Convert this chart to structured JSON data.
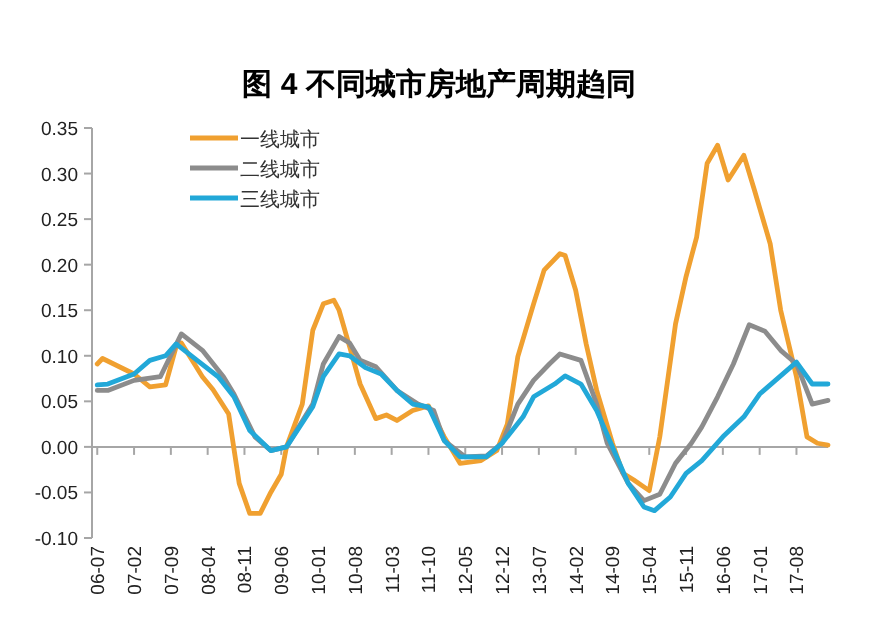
{
  "chart_data": {
    "type": "line",
    "title": "图 4  不同城市房地产周期趋同",
    "xlim": [
      "2006-06",
      "2018-02"
    ],
    "ylim": [
      -0.1,
      0.35
    ],
    "yticks": [
      {
        "value": -0.1,
        "label": "-0.10"
      },
      {
        "value": -0.05,
        "label": "-0.05"
      },
      {
        "value": 0,
        "label": "0.00"
      },
      {
        "value": 0.05,
        "label": "0.05"
      },
      {
        "value": 0.1,
        "label": "0.10"
      },
      {
        "value": 0.15,
        "label": "0.15"
      },
      {
        "value": 0.2,
        "label": "0.20"
      },
      {
        "value": 0.25,
        "label": "0.25"
      },
      {
        "value": 0.3,
        "label": "0.30"
      },
      {
        "value": 0.35,
        "label": "0.35"
      }
    ],
    "xticks": [
      {
        "value": "2006-07",
        "label": "06-07"
      },
      {
        "value": "2007-02",
        "label": "07-02"
      },
      {
        "value": "2007-09",
        "label": "07-09"
      },
      {
        "value": "2008-04",
        "label": "08-04"
      },
      {
        "value": "2008-11",
        "label": "08-11"
      },
      {
        "value": "2009-06",
        "label": "09-06"
      },
      {
        "value": "2010-01",
        "label": "10-01"
      },
      {
        "value": "2010-08",
        "label": "10-08"
      },
      {
        "value": "2011-03",
        "label": "11-03"
      },
      {
        "value": "2011-10",
        "label": "11-10"
      },
      {
        "value": "2012-05",
        "label": "12-05"
      },
      {
        "value": "2012-12",
        "label": "12-12"
      },
      {
        "value": "2013-07",
        "label": "13-07"
      },
      {
        "value": "2014-02",
        "label": "14-02"
      },
      {
        "value": "2014-09",
        "label": "14-09"
      },
      {
        "value": "2015-04",
        "label": "15-04"
      },
      {
        "value": "2015-11",
        "label": "15-11"
      },
      {
        "value": "2016-06",
        "label": "16-06"
      },
      {
        "value": "2017-01",
        "label": "17-01"
      },
      {
        "value": "2017-08",
        "label": "17-08"
      }
    ],
    "legend": "top left",
    "series": [
      {
        "name": "一线城市",
        "color": "#f0a030",
        "x": [
          "2006-07",
          "2006-08",
          "2007-02",
          "2007-05",
          "2007-08",
          "2007-10",
          "2007-11",
          "2008-03",
          "2008-05",
          "2008-08",
          "2008-10",
          "2008-12",
          "2009-02",
          "2009-04",
          "2009-06",
          "2009-07",
          "2009-10",
          "2009-12",
          "2010-02",
          "2010-04",
          "2010-05",
          "2010-07",
          "2010-09",
          "2010-12",
          "2011-02",
          "2011-04",
          "2011-07",
          "2011-10",
          "2012-01",
          "2012-04",
          "2012-08",
          "2012-11",
          "2013-01",
          "2013-03",
          "2013-06",
          "2013-08",
          "2013-11",
          "2013-12",
          "2014-02",
          "2014-04",
          "2014-06",
          "2014-09",
          "2014-11",
          "2015-01",
          "2015-04",
          "2015-06",
          "2015-09",
          "2015-11",
          "2016-01",
          "2016-03",
          "2016-05",
          "2016-07",
          "2016-10",
          "2016-12",
          "2017-03",
          "2017-05",
          "2017-08",
          "2017-10",
          "2017-12",
          "2018-02"
        ],
        "values": [
          0.091,
          0.097,
          0.08,
          0.066,
          0.068,
          0.11,
          0.114,
          0.077,
          0.063,
          0.036,
          -0.04,
          -0.073,
          -0.073,
          -0.05,
          -0.03,
          0.0,
          0.047,
          0.128,
          0.157,
          0.161,
          0.15,
          0.11,
          0.069,
          0.031,
          0.035,
          0.029,
          0.04,
          0.045,
          0.011,
          -0.018,
          -0.015,
          -0.004,
          0.025,
          0.099,
          0.157,
          0.194,
          0.212,
          0.21,
          0.172,
          0.113,
          0.062,
          0.004,
          -0.029,
          -0.036,
          -0.048,
          0.011,
          0.135,
          0.187,
          0.23,
          0.311,
          0.331,
          0.293,
          0.32,
          0.282,
          0.223,
          0.15,
          0.077,
          0.011,
          0.004,
          0.002
        ]
      },
      {
        "name": "二线城市",
        "color": "#8c8c8c",
        "x": [
          "2006-07",
          "2006-09",
          "2007-02",
          "2007-07",
          "2007-11",
          "2008-03",
          "2008-07",
          "2008-09",
          "2009-01",
          "2009-04",
          "2009-07",
          "2009-12",
          "2010-02",
          "2010-05",
          "2010-07",
          "2010-09",
          "2010-12",
          "2011-04",
          "2011-08",
          "2011-11",
          "2012-01",
          "2012-05",
          "2012-09",
          "2012-12",
          "2013-03",
          "2013-06",
          "2013-09",
          "2013-11",
          "2014-03",
          "2014-06",
          "2014-08",
          "2014-12",
          "2015-03",
          "2015-06",
          "2015-09",
          "2015-12",
          "2016-02",
          "2016-05",
          "2016-08",
          "2016-11",
          "2017-02",
          "2017-05",
          "2017-08",
          "2017-11",
          "2018-02"
        ],
        "values": [
          0.062,
          0.062,
          0.073,
          0.077,
          0.124,
          0.106,
          0.077,
          0.058,
          0.011,
          -0.004,
          0.0,
          0.047,
          0.091,
          0.121,
          0.114,
          0.095,
          0.088,
          0.062,
          0.047,
          0.04,
          0.007,
          -0.011,
          -0.01,
          0.004,
          0.047,
          0.073,
          0.091,
          0.102,
          0.095,
          0.047,
          0.004,
          -0.04,
          -0.059,
          -0.052,
          -0.018,
          0.004,
          0.022,
          0.055,
          0.091,
          0.134,
          0.127,
          0.106,
          0.091,
          0.047,
          0.051
        ]
      },
      {
        "name": "三线城市",
        "color": "#22a8d8",
        "x": [
          "2006-07",
          "2006-09",
          "2007-02",
          "2007-05",
          "2007-08",
          "2007-10",
          "2008-02",
          "2008-06",
          "2008-09",
          "2008-12",
          "2009-04",
          "2009-07",
          "2009-12",
          "2010-02",
          "2010-05",
          "2010-07",
          "2010-10",
          "2011-01",
          "2011-04",
          "2011-07",
          "2011-10",
          "2012-01",
          "2012-04",
          "2012-09",
          "2012-12",
          "2013-04",
          "2013-06",
          "2013-10",
          "2013-12",
          "2014-03",
          "2014-06",
          "2014-09",
          "2014-12",
          "2015-03",
          "2015-05",
          "2015-08",
          "2015-11",
          "2016-02",
          "2016-06",
          "2016-10",
          "2017-01",
          "2017-04",
          "2017-08",
          "2017-11",
          "2018-02"
        ],
        "values": [
          0.068,
          0.069,
          0.08,
          0.095,
          0.1,
          0.113,
          0.095,
          0.077,
          0.055,
          0.018,
          -0.004,
          0.0,
          0.044,
          0.077,
          0.102,
          0.1,
          0.087,
          0.08,
          0.062,
          0.047,
          0.044,
          0.007,
          -0.011,
          -0.011,
          0.004,
          0.033,
          0.055,
          0.069,
          0.078,
          0.069,
          0.04,
          0.0,
          -0.04,
          -0.066,
          -0.07,
          -0.055,
          -0.029,
          -0.015,
          0.011,
          0.033,
          0.058,
          0.073,
          0.093,
          0.069,
          0.069
        ]
      }
    ]
  }
}
